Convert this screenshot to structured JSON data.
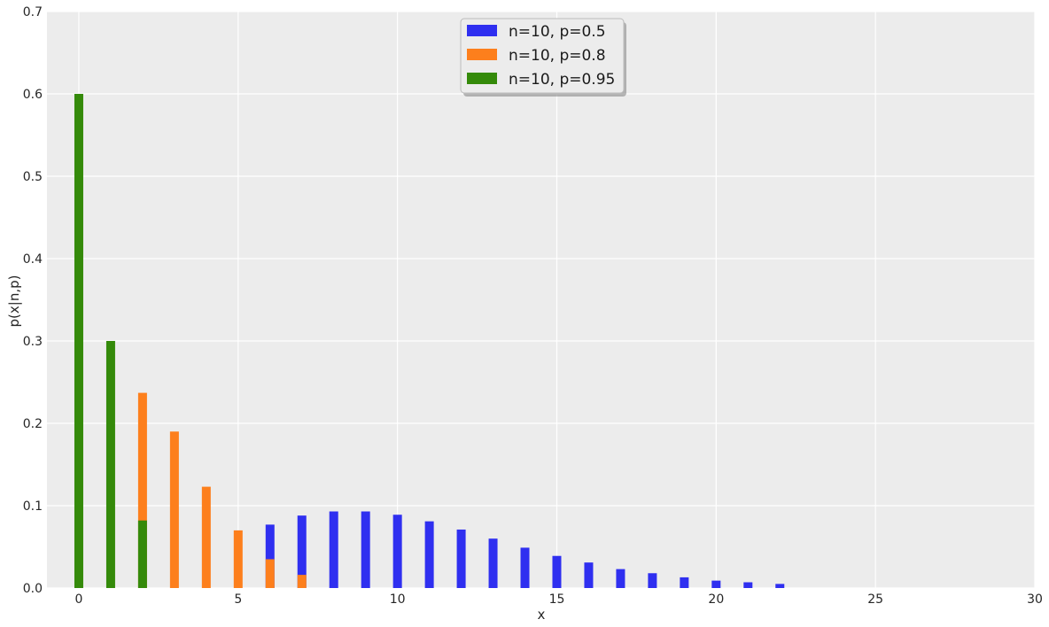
{
  "chart_data": {
    "type": "bar",
    "xlabel": "x",
    "ylabel": "p(x|n,p)",
    "xlim": [
      -1,
      30
    ],
    "ylim": [
      0,
      0.7
    ],
    "xticks": [
      0,
      5,
      10,
      15,
      20,
      25,
      30
    ],
    "yticks": [
      0.0,
      0.1,
      0.2,
      0.3,
      0.4,
      0.5,
      0.6,
      0.7
    ],
    "x_tick_labels": [
      "0",
      "5",
      "10",
      "15",
      "20",
      "25",
      "30"
    ],
    "y_tick_labels": [
      "0.0",
      "0.1",
      "0.2",
      "0.3",
      "0.4",
      "0.5",
      "0.6",
      "0.7"
    ],
    "grid": true,
    "legend_position": "top-center",
    "series": [
      {
        "name": "n=10, p=0.5",
        "color": "#2f2ff0",
        "x": [
          6,
          7,
          8,
          9,
          10,
          11,
          12,
          13,
          14,
          15,
          16,
          17,
          18,
          19,
          20,
          21,
          22
        ],
        "values": [
          0.077,
          0.088,
          0.093,
          0.093,
          0.089,
          0.081,
          0.071,
          0.06,
          0.049,
          0.039,
          0.031,
          0.023,
          0.018,
          0.013,
          0.009,
          0.007,
          0.005
        ]
      },
      {
        "name": "n=10, p=0.8",
        "color": "#fd7f1c",
        "x": [
          2,
          3,
          4,
          5,
          6,
          7
        ],
        "values": [
          0.237,
          0.19,
          0.123,
          0.07,
          0.035,
          0.016
        ]
      },
      {
        "name": "n=10, p=0.95",
        "color": "#348a0a",
        "x": [
          0,
          1,
          2
        ],
        "values": [
          0.6,
          0.3,
          0.082
        ]
      }
    ]
  }
}
